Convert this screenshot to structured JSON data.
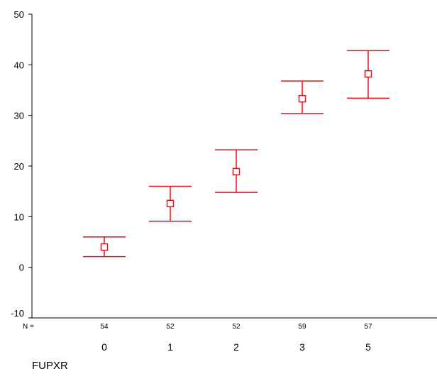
{
  "chart_data": {
    "type": "errorbar",
    "xlabel": "FUPXR",
    "ylabel": "",
    "ylim": [
      -10,
      50
    ],
    "yticks": [
      -10,
      0,
      10,
      20,
      30,
      40,
      50
    ],
    "n_prefix": "N =",
    "categories": [
      "0",
      "1",
      "2",
      "3",
      "5"
    ],
    "n": [
      "54",
      "52",
      "52",
      "59",
      "57"
    ],
    "mean": [
      4.0,
      12.6,
      18.9,
      33.3,
      38.2
    ],
    "lower": [
      2.1,
      9.1,
      14.8,
      30.4,
      33.4
    ],
    "upper": [
      6.0,
      16.0,
      23.2,
      36.8,
      42.8
    ],
    "grid": false,
    "color": "#e8131a"
  }
}
